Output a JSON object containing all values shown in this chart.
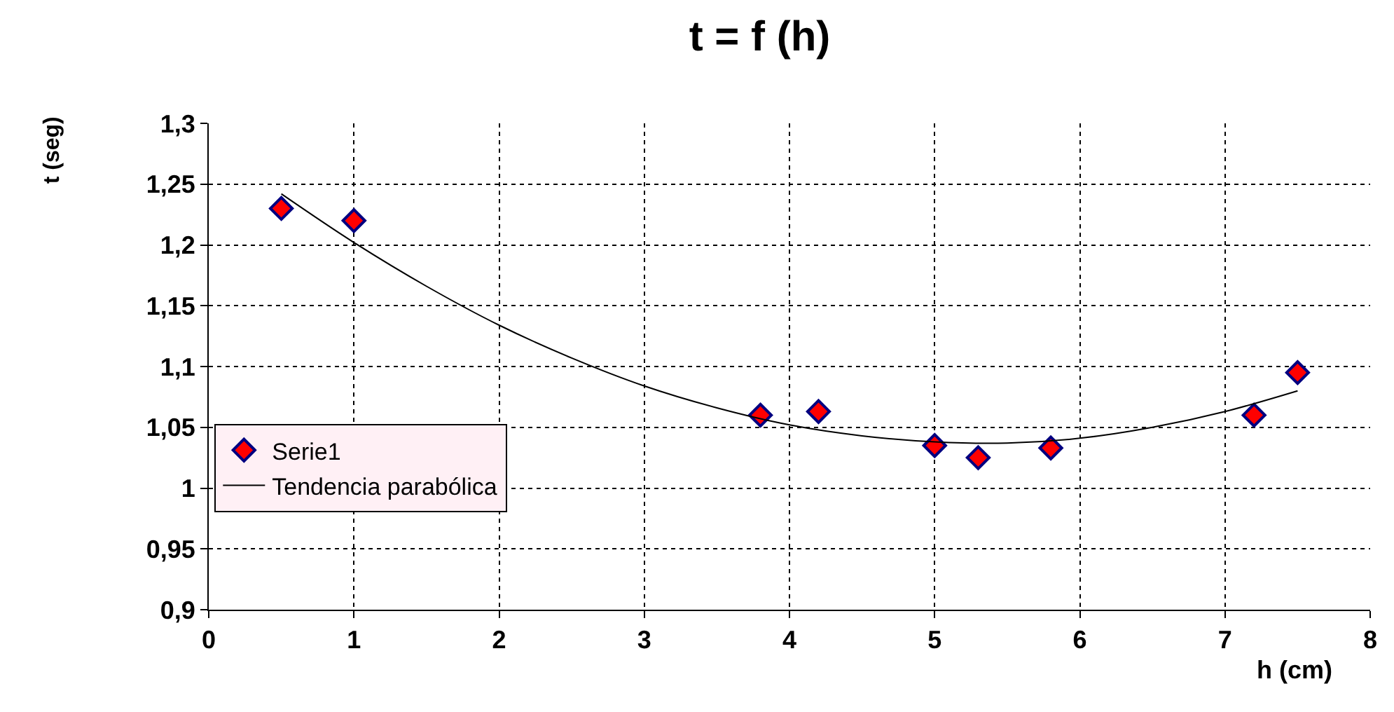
{
  "chart_data": {
    "type": "scatter",
    "title": "t = f (h)",
    "xlabel": "h (cm)",
    "ylabel": "t (seg)",
    "series": [
      {
        "name": "Serie1",
        "color": "#ff0000",
        "marker": "diamond",
        "x": [
          0.5,
          1,
          3.8,
          4.2,
          5,
          5.3,
          5.8,
          7.2,
          7.5
        ],
        "values": [
          1.23,
          1.22,
          1.06,
          1.063,
          1.035,
          1.025,
          1.033,
          1.06,
          1.095
        ]
      },
      {
        "name": "Tendencia parabólica",
        "type": "line",
        "color": "#000000",
        "line_style": "solid",
        "x": [
          0.5,
          1,
          1.5,
          2,
          2.5,
          3,
          3.5,
          4,
          4.5,
          5,
          5.5,
          6,
          6.5,
          7,
          7.5
        ],
        "values": [
          1.242,
          1.202,
          1.166,
          1.134,
          1.107,
          1.084,
          1.066,
          1.052,
          1.043,
          1.038,
          1.037,
          1.041,
          1.05,
          1.063,
          1.08
        ]
      }
    ],
    "xlim": [
      0,
      8
    ],
    "xticks": [
      0,
      1,
      2,
      3,
      4,
      5,
      6,
      7,
      8
    ],
    "ylim": [
      0.9,
      1.3
    ],
    "yticks": [
      {
        "value": 0.9,
        "label": "0,9"
      },
      {
        "value": 0.95,
        "label": "0,95"
      },
      {
        "value": 1,
        "label": "1"
      },
      {
        "value": 1.05,
        "label": "1,05"
      },
      {
        "value": 1.1,
        "label": "1,1"
      },
      {
        "value": 1.15,
        "label": "1,15"
      },
      {
        "value": 1.2,
        "label": "1,2"
      },
      {
        "value": 1.25,
        "label": "1,25"
      },
      {
        "value": 1.3,
        "label": "1,3"
      }
    ],
    "grid": true,
    "legend": "bottom left"
  }
}
